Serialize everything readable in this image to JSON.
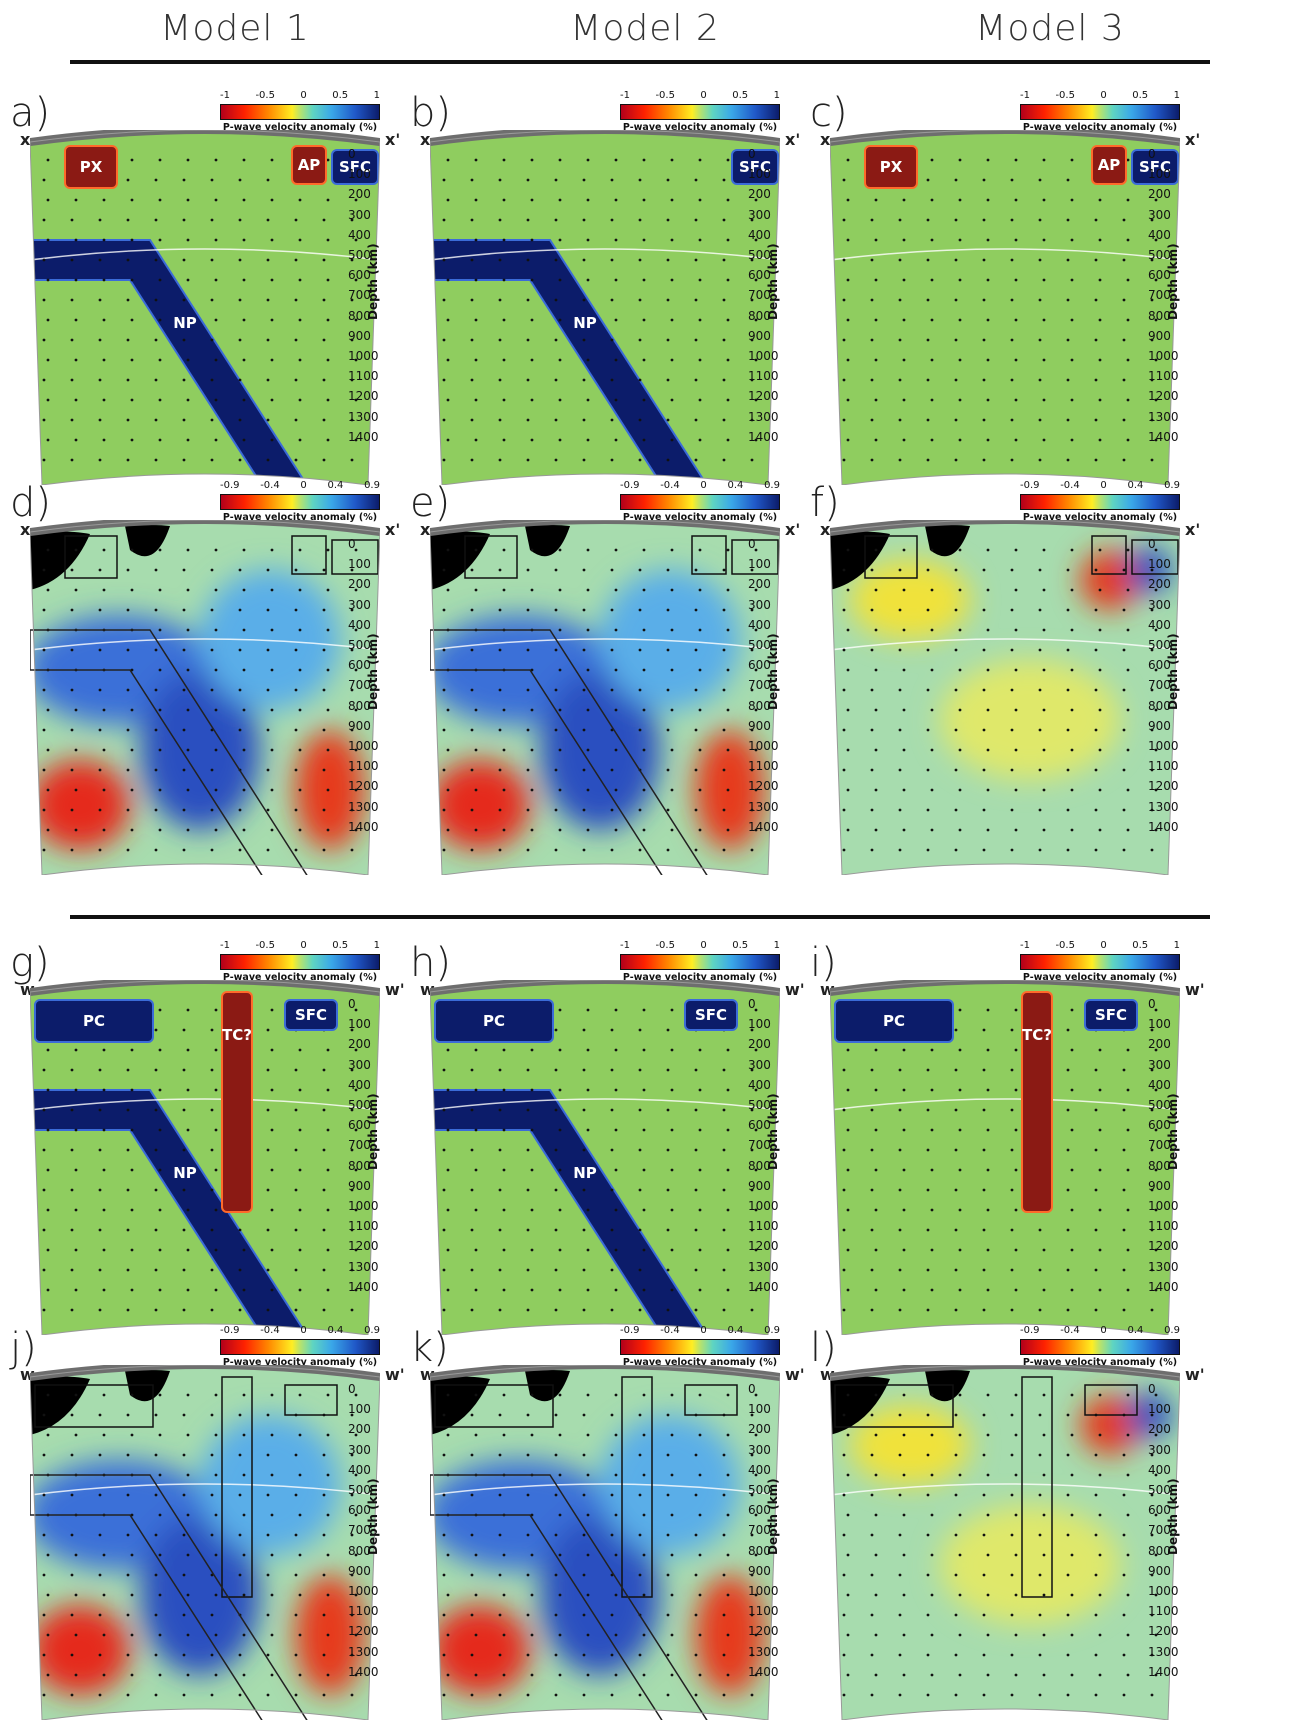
{
  "header": {
    "titles": [
      "Model 1",
      "Model 2",
      "Model 3"
    ]
  },
  "colorbar": {
    "input_ticks": [
      "-1",
      "-0.5",
      "0",
      "0.5",
      "1"
    ],
    "output_ticks": [
      "-0.9",
      "-0.4",
      "0",
      "0.4",
      "0.9"
    ],
    "label": "P-wave velocity anomaly (%)"
  },
  "depth": {
    "ticks": [
      "0",
      "100",
      "200",
      "300",
      "400",
      "500",
      "600",
      "700",
      "800",
      "900",
      "1000",
      "1100",
      "1200",
      "1300",
      "1400"
    ],
    "label": "Depth (km)"
  },
  "sections": {
    "x": {
      "left": "x",
      "right": "x'"
    },
    "w": {
      "left": "w",
      "right": "w'"
    }
  },
  "panels": [
    {
      "letter": "a)",
      "kind": "input",
      "section": "x",
      "features": [
        "PX",
        "AP",
        "SFC",
        "NP"
      ]
    },
    {
      "letter": "b)",
      "kind": "input",
      "section": "x",
      "features": [
        "SFC",
        "NP"
      ]
    },
    {
      "letter": "c)",
      "kind": "input",
      "section": "x",
      "features": [
        "PX",
        "AP",
        "SFC"
      ]
    },
    {
      "letter": "d)",
      "kind": "output",
      "section": "x"
    },
    {
      "letter": "e)",
      "kind": "output",
      "section": "x"
    },
    {
      "letter": "f)",
      "kind": "output",
      "section": "x"
    },
    {
      "letter": "g)",
      "kind": "input",
      "section": "w",
      "features": [
        "PC",
        "TC?",
        "SFC",
        "NP"
      ]
    },
    {
      "letter": "h)",
      "kind": "input",
      "section": "w",
      "features": [
        "PC",
        "SFC",
        "NP"
      ]
    },
    {
      "letter": "i)",
      "kind": "input",
      "section": "w",
      "features": [
        "PC",
        "TC?",
        "SFC"
      ]
    },
    {
      "letter": "j)",
      "kind": "output",
      "section": "w"
    },
    {
      "letter": "k)",
      "kind": "output",
      "section": "w"
    },
    {
      "letter": "l)",
      "kind": "output",
      "section": "w"
    }
  ],
  "colors": {
    "background_green": "#8fcd5f",
    "slow_red": "#8b1a14",
    "fast_blue": "#0c1c6a",
    "crust_gray": "#6e6e6e"
  }
}
